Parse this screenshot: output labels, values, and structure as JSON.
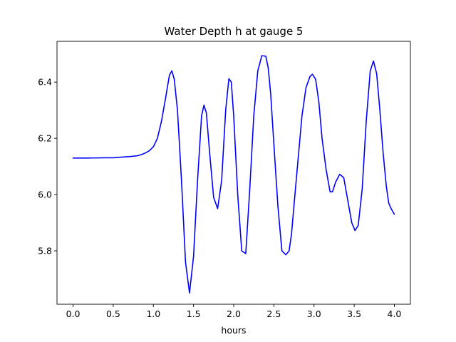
{
  "chart_data": {
    "type": "line",
    "title": "Water Depth h at gauge 5",
    "xlabel": "hours",
    "ylabel": "",
    "xlim": [
      -0.2,
      4.2
    ],
    "ylim": [
      5.61,
      6.545
    ],
    "xticks": [
      0.0,
      0.5,
      1.0,
      1.5,
      2.0,
      2.5,
      3.0,
      3.5,
      4.0
    ],
    "xtick_labels": [
      "0.0",
      "0.5",
      "1.0",
      "1.5",
      "2.0",
      "2.5",
      "3.0",
      "3.5",
      "4.0"
    ],
    "yticks": [
      5.8,
      6.0,
      6.2,
      6.4
    ],
    "ytick_labels": [
      "5.8",
      "6.0",
      "6.2",
      "6.4"
    ],
    "grid": false,
    "legend": "none",
    "series": [
      {
        "color": "#0000ff",
        "x": [
          0.0,
          0.2,
          0.4,
          0.5,
          0.6,
          0.7,
          0.8,
          0.85,
          0.9,
          0.95,
          1.0,
          1.05,
          1.1,
          1.15,
          1.2,
          1.23,
          1.26,
          1.3,
          1.35,
          1.4,
          1.45,
          1.5,
          1.55,
          1.6,
          1.63,
          1.66,
          1.7,
          1.75,
          1.8,
          1.85,
          1.9,
          1.94,
          1.97,
          2.0,
          2.05,
          2.1,
          2.15,
          2.2,
          2.25,
          2.3,
          2.35,
          2.4,
          2.43,
          2.46,
          2.5,
          2.55,
          2.6,
          2.65,
          2.69,
          2.72,
          2.75,
          2.8,
          2.85,
          2.9,
          2.95,
          2.98,
          3.02,
          3.06,
          3.1,
          3.15,
          3.2,
          3.23,
          3.27,
          3.32,
          3.37,
          3.42,
          3.47,
          3.51,
          3.55,
          3.6,
          3.65,
          3.7,
          3.74,
          3.78,
          3.82,
          3.86,
          3.9,
          3.93,
          3.96,
          4.0
        ],
        "y": [
          6.13,
          6.13,
          6.131,
          6.131,
          6.133,
          6.135,
          6.138,
          6.142,
          6.148,
          6.156,
          6.17,
          6.2,
          6.26,
          6.34,
          6.425,
          6.44,
          6.41,
          6.3,
          6.05,
          5.76,
          5.65,
          5.78,
          6.05,
          6.28,
          6.318,
          6.29,
          6.15,
          5.99,
          5.95,
          6.05,
          6.3,
          6.412,
          6.4,
          6.28,
          6.0,
          5.8,
          5.79,
          6.02,
          6.28,
          6.44,
          6.494,
          6.492,
          6.45,
          6.36,
          6.18,
          5.96,
          5.8,
          5.786,
          5.8,
          5.86,
          5.96,
          6.12,
          6.28,
          6.38,
          6.42,
          6.428,
          6.41,
          6.33,
          6.2,
          6.09,
          6.01,
          6.01,
          6.045,
          6.072,
          6.06,
          5.98,
          5.9,
          5.872,
          5.89,
          6.02,
          6.26,
          6.44,
          6.475,
          6.43,
          6.3,
          6.15,
          6.03,
          5.97,
          5.95,
          5.93
        ]
      }
    ]
  }
}
